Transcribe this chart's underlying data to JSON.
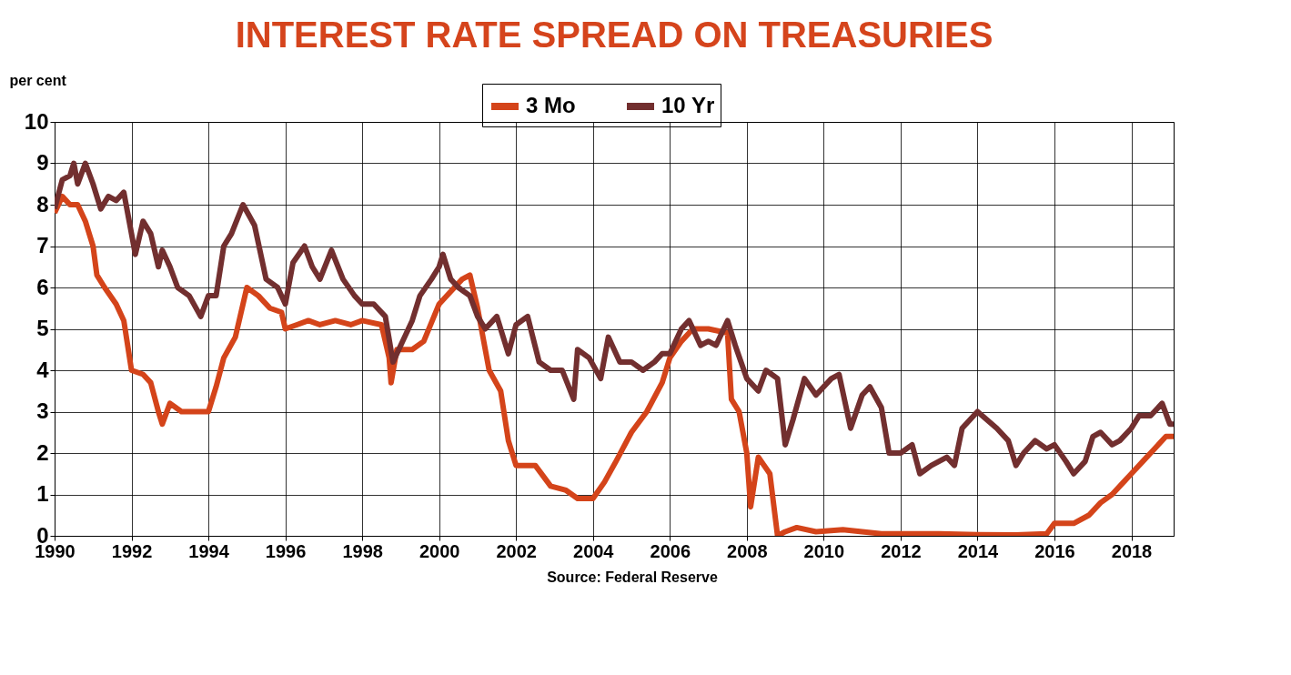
{
  "chart_data": {
    "type": "line",
    "title": "INTEREST RATE SPREAD ON TREASURIES",
    "ylabel": "per cent",
    "annotations": [
      "Source: Federal Reserve"
    ],
    "xlim": [
      1990,
      2019.1
    ],
    "xticks": [
      1990,
      1992,
      1994,
      1996,
      1998,
      2000,
      2002,
      2004,
      2006,
      2008,
      2010,
      2012,
      2014,
      2016,
      2018
    ],
    "ylim": [
      0,
      10
    ],
    "yticks": [
      0,
      1,
      2,
      3,
      4,
      5,
      6,
      7,
      8,
      9,
      10
    ],
    "grid": true,
    "legend": "top",
    "marker": "none",
    "line_style": "solid",
    "series": [
      {
        "name": "3 Mo",
        "color": "#d4441a",
        "x": [
          1990.0,
          1990.2,
          1990.4,
          1990.6,
          1990.8,
          1991.0,
          1991.1,
          1991.3,
          1991.6,
          1991.8,
          1992.0,
          1992.3,
          1992.5,
          1992.7,
          1992.8,
          1993.0,
          1993.3,
          1993.6,
          1994.0,
          1994.2,
          1994.4,
          1994.7,
          1994.9,
          1995.0,
          1995.3,
          1995.6,
          1995.9,
          1996.0,
          1996.3,
          1996.6,
          1996.9,
          1997.3,
          1997.7,
          1998.0,
          1998.5,
          1998.7,
          1998.75,
          1998.9,
          1999.3,
          1999.6,
          2000.0,
          2000.3,
          2000.6,
          2000.8,
          2001.0,
          2001.3,
          2001.6,
          2001.8,
          2002.0,
          2002.5,
          2002.9,
          2003.3,
          2003.6,
          2004.0,
          2004.3,
          2004.6,
          2005.0,
          2005.4,
          2005.8,
          2006.0,
          2006.3,
          2006.6,
          2007.0,
          2007.5,
          2007.6,
          2007.8,
          2008.0,
          2008.1,
          2008.3,
          2008.6,
          2008.8,
          2009.0,
          2009.3,
          2009.8,
          2010.5,
          2011.0,
          2011.5,
          2012.0,
          2013.0,
          2014.0,
          2015.0,
          2015.8,
          2016.0,
          2016.5,
          2016.9,
          2017.2,
          2017.5,
          2017.8,
          2018.0,
          2018.3,
          2018.6,
          2018.9,
          2019.1
        ],
        "values": [
          7.8,
          8.2,
          8.0,
          8.0,
          7.6,
          7.0,
          6.3,
          6.0,
          5.6,
          5.2,
          4.0,
          3.9,
          3.7,
          3.0,
          2.7,
          3.2,
          3.0,
          3.0,
          3.0,
          3.6,
          4.3,
          4.8,
          5.6,
          6.0,
          5.8,
          5.5,
          5.4,
          5.0,
          5.1,
          5.2,
          5.1,
          5.2,
          5.1,
          5.2,
          5.1,
          4.3,
          3.7,
          4.5,
          4.5,
          4.7,
          5.6,
          5.9,
          6.2,
          6.3,
          5.5,
          4.0,
          3.5,
          2.3,
          1.7,
          1.7,
          1.2,
          1.1,
          0.9,
          0.9,
          1.3,
          1.8,
          2.5,
          3.0,
          3.7,
          4.3,
          4.7,
          5.0,
          5.0,
          4.9,
          3.3,
          3.0,
          2.0,
          0.7,
          1.9,
          1.5,
          0.0,
          0.1,
          0.2,
          0.1,
          0.15,
          0.1,
          0.05,
          0.05,
          0.05,
          0.03,
          0.02,
          0.05,
          0.3,
          0.3,
          0.5,
          0.8,
          1.0,
          1.3,
          1.5,
          1.8,
          2.1,
          2.4,
          2.4
        ]
      },
      {
        "name": "10 Yr",
        "color": "#722f2f",
        "x": [
          1990.0,
          1990.2,
          1990.4,
          1990.5,
          1990.6,
          1990.8,
          1991.0,
          1991.2,
          1991.4,
          1991.6,
          1991.8,
          1992.0,
          1992.1,
          1992.3,
          1992.5,
          1992.7,
          1992.8,
          1993.0,
          1993.2,
          1993.5,
          1993.8,
          1994.0,
          1994.2,
          1994.4,
          1994.6,
          1994.9,
          1995.2,
          1995.5,
          1995.8,
          1996.0,
          1996.2,
          1996.5,
          1996.7,
          1996.9,
          1997.2,
          1997.5,
          1997.8,
          1998.0,
          1998.3,
          1998.6,
          1998.8,
          1999.0,
          1999.3,
          1999.5,
          1999.8,
          2000.0,
          2000.1,
          2000.3,
          2000.5,
          2000.8,
          2001.0,
          2001.2,
          2001.5,
          2001.8,
          2002.0,
          2002.3,
          2002.6,
          2002.9,
          2003.2,
          2003.5,
          2003.6,
          2003.9,
          2004.2,
          2004.4,
          2004.7,
          2005.0,
          2005.3,
          2005.6,
          2005.8,
          2006.0,
          2006.3,
          2006.5,
          2006.8,
          2007.0,
          2007.2,
          2007.5,
          2007.7,
          2008.0,
          2008.3,
          2008.5,
          2008.8,
          2009.0,
          2009.2,
          2009.5,
          2009.8,
          2010.2,
          2010.4,
          2010.7,
          2011.0,
          2011.2,
          2011.5,
          2011.7,
          2012.0,
          2012.3,
          2012.5,
          2012.8,
          2013.2,
          2013.4,
          2013.6,
          2013.9,
          2014.0,
          2014.5,
          2014.8,
          2015.0,
          2015.2,
          2015.5,
          2015.8,
          2016.0,
          2016.3,
          2016.5,
          2016.8,
          2017.0,
          2017.2,
          2017.5,
          2017.7,
          2018.0,
          2018.2,
          2018.5,
          2018.8,
          2019.0,
          2019.1
        ],
        "values": [
          7.9,
          8.6,
          8.7,
          9.0,
          8.5,
          9.0,
          8.5,
          7.9,
          8.2,
          8.1,
          8.3,
          7.3,
          6.8,
          7.6,
          7.3,
          6.5,
          6.9,
          6.5,
          6.0,
          5.8,
          5.3,
          5.8,
          5.8,
          7.0,
          7.3,
          8.0,
          7.5,
          6.2,
          6.0,
          5.6,
          6.6,
          7.0,
          6.5,
          6.2,
          6.9,
          6.2,
          5.8,
          5.6,
          5.6,
          5.3,
          4.2,
          4.6,
          5.2,
          5.8,
          6.2,
          6.5,
          6.8,
          6.2,
          6.0,
          5.8,
          5.3,
          5.0,
          5.3,
          4.4,
          5.1,
          5.3,
          4.2,
          4.0,
          4.0,
          3.3,
          4.5,
          4.3,
          3.8,
          4.8,
          4.2,
          4.2,
          4.0,
          4.2,
          4.4,
          4.4,
          5.0,
          5.2,
          4.6,
          4.7,
          4.6,
          5.2,
          4.6,
          3.8,
          3.5,
          4.0,
          3.8,
          2.2,
          2.8,
          3.8,
          3.4,
          3.8,
          3.9,
          2.6,
          3.4,
          3.6,
          3.1,
          2.0,
          2.0,
          2.2,
          1.5,
          1.7,
          1.9,
          1.7,
          2.6,
          2.9,
          3.0,
          2.6,
          2.3,
          1.7,
          2.0,
          2.3,
          2.1,
          2.2,
          1.8,
          1.5,
          1.8,
          2.4,
          2.5,
          2.2,
          2.3,
          2.6,
          2.9,
          2.9,
          3.2,
          2.7,
          2.7
        ]
      }
    ]
  }
}
